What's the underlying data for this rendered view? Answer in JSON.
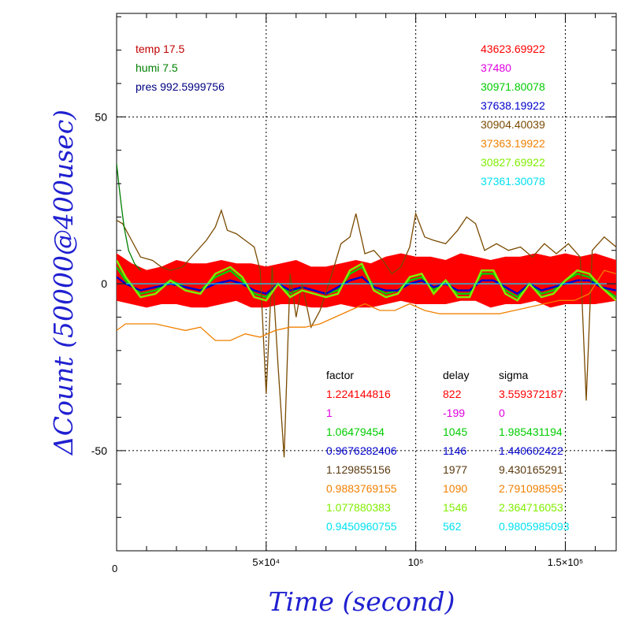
{
  "chart_data": {
    "type": "line",
    "xlabel": "Time (second)",
    "ylabel": "ΔCount (50000@400usec)",
    "xlim": [
      0,
      167000
    ],
    "ylim": [
      -80,
      81
    ],
    "grid": true,
    "x_ticks": [
      {
        "value": 0,
        "label": "0"
      },
      {
        "value": 50000,
        "label": "5×10⁴"
      },
      {
        "value": 100000,
        "label": "10⁵"
      },
      {
        "value": 150000,
        "label": "1.5×10⁵"
      }
    ],
    "y_ticks": [
      {
        "value": 50,
        "label": "50"
      },
      {
        "value": 0,
        "label": "0"
      },
      {
        "value": -50,
        "label": "-50"
      }
    ],
    "conditions": [
      {
        "text": "temp 17.5",
        "color": "#c00000"
      },
      {
        "text": "humi 7.5",
        "color": "#008000"
      },
      {
        "text": "pres 992.5999756",
        "color": "#000080"
      }
    ],
    "means": [
      {
        "text": "43623.69922",
        "color": "#ff0000"
      },
      {
        "text": "37480",
        "color": "#e000e0"
      },
      {
        "text": "30971.80078",
        "color": "#00cc00"
      },
      {
        "text": "37638.19922",
        "color": "#0000cc"
      },
      {
        "text": "30904.40039",
        "color": "#7a4a00"
      },
      {
        "text": "37363.19922",
        "color": "#f08000"
      },
      {
        "text": "30827.69922",
        "color": "#80ee00"
      },
      {
        "text": "37361.30078",
        "color": "#00e0f0"
      }
    ],
    "table": {
      "headers": [
        "factor",
        "delay",
        "sigma"
      ],
      "rows": [
        {
          "factor": "1.224144816",
          "delay": "822",
          "sigma": "3.559372187",
          "color": "#ff0000"
        },
        {
          "factor": "1",
          "delay": "-199",
          "sigma": "0",
          "color": "#e000e0"
        },
        {
          "factor": "1.06479454",
          "delay": "1045",
          "sigma": "1.985431194",
          "color": "#00cc00"
        },
        {
          "factor": "0.9676282406",
          "delay": "1146",
          "sigma": "1.440602422",
          "color": "#0000cc"
        },
        {
          "factor": "1.129855156",
          "delay": "1977",
          "sigma": "9.430165291",
          "color": "#5a3a10"
        },
        {
          "factor": "0.9883769155",
          "delay": "1090",
          "sigma": "2.791098595",
          "color": "#f08000"
        },
        {
          "factor": "1.077880383",
          "delay": "1546",
          "sigma": "2.364716053",
          "color": "#80ee00"
        },
        {
          "factor": "0.9450960755",
          "delay": "562",
          "sigma": "0.9805985093",
          "color": "#00e0f0"
        }
      ]
    },
    "series": [
      {
        "color": "#ff0000",
        "band": true,
        "x": [
          0,
          5000,
          10000,
          15000,
          20000,
          25000,
          30000,
          35000,
          40000,
          45000,
          50000,
          55000,
          60000,
          65000,
          70000,
          75000,
          80000,
          85000,
          90000,
          95000,
          100000,
          105000,
          110000,
          115000,
          120000,
          125000,
          130000,
          135000,
          140000,
          145000,
          150000,
          155000,
          160000,
          167000
        ],
        "upper": [
          9,
          6,
          4,
          5,
          7,
          6,
          6,
          7,
          6,
          6,
          5,
          6,
          7,
          5,
          5,
          6,
          7,
          6,
          8,
          9,
          8,
          8,
          7,
          9,
          8,
          7,
          8,
          8,
          9,
          8,
          9,
          8,
          9,
          7
        ],
        "lower": [
          -5,
          -6,
          -7,
          -6,
          -6,
          -7,
          -7,
          -6,
          -5,
          -7,
          -7,
          -6,
          -6,
          -7,
          -7,
          -6,
          -7,
          -7,
          -6,
          -5,
          -6,
          -6,
          -6,
          -5,
          -5,
          -7,
          -6,
          -6,
          -5,
          -7,
          -6,
          -6,
          -6,
          -5
        ]
      },
      {
        "color": "#e000e0",
        "x": [
          0,
          167000
        ],
        "y": [
          0,
          0
        ]
      },
      {
        "color": "#00cc00",
        "x": [
          0,
          3000,
          8000,
          13000,
          18000,
          23000,
          28000,
          33000,
          38000,
          42000,
          46000,
          50000,
          54000,
          58000,
          62000,
          66000,
          70000,
          74000,
          78000,
          82000,
          86000,
          90000,
          94000,
          98000,
          102000,
          106000,
          110000,
          114000,
          118000,
          122000,
          126000,
          130000,
          134000,
          138000,
          142000,
          146000,
          150000,
          154000,
          158000,
          162000,
          167000
        ],
        "y": [
          5,
          1,
          -3,
          -2,
          1,
          -1,
          -2,
          2,
          4,
          1,
          -3,
          -4,
          0,
          -3,
          -1,
          -2,
          -3,
          -2,
          3,
          5,
          -1,
          -3,
          -2,
          1,
          2,
          -2,
          1,
          -3,
          -3,
          3,
          3,
          -2,
          -4,
          0,
          -3,
          -2,
          1,
          3,
          2,
          -1,
          -4
        ]
      },
      {
        "color": "#0000cc",
        "x": [
          0,
          3000,
          8000,
          13000,
          18000,
          23000,
          28000,
          33000,
          38000,
          42000,
          46000,
          50000,
          54000,
          58000,
          62000,
          66000,
          70000,
          74000,
          78000,
          82000,
          86000,
          90000,
          94000,
          98000,
          102000,
          106000,
          110000,
          114000,
          118000,
          122000,
          126000,
          130000,
          134000,
          138000,
          142000,
          146000,
          150000,
          154000,
          158000,
          162000,
          167000
        ],
        "y": [
          2,
          0,
          -2,
          -1,
          0,
          -1,
          -2,
          0,
          1,
          0,
          -2,
          -3,
          0,
          -2,
          -1,
          -2,
          -3,
          -1,
          1,
          2,
          -1,
          -2,
          -2,
          0,
          1,
          -1,
          0,
          -2,
          -2,
          1,
          1,
          -1,
          -3,
          0,
          -2,
          -1,
          0,
          1,
          1,
          -1,
          -2
        ]
      },
      {
        "color": "#7a4a00",
        "x": [
          0,
          2000,
          5000,
          8000,
          12000,
          15000,
          18000,
          22000,
          26000,
          30000,
          33000,
          35000,
          37000,
          40000,
          43000,
          46000,
          48000,
          50000,
          52000,
          54000,
          56000,
          58000,
          60000,
          62000,
          65000,
          68000,
          72000,
          75000,
          78000,
          80000,
          83000,
          86000,
          89000,
          92000,
          95000,
          98000,
          100000,
          103000,
          106000,
          110000,
          114000,
          117000,
          120000,
          123000,
          127000,
          131000,
          135000,
          139000,
          143000,
          147000,
          151000,
          155000,
          157000,
          159000,
          163000,
          167000
        ],
        "y": [
          19,
          18,
          13,
          8,
          7,
          5,
          4,
          5,
          9,
          13,
          17,
          22,
          16,
          15,
          13,
          11,
          4,
          -33,
          5,
          -25,
          -52,
          3,
          -10,
          0,
          -13,
          -8,
          3,
          12,
          14,
          21,
          9,
          10,
          7,
          3,
          5,
          11,
          21,
          14,
          13,
          12,
          16,
          20,
          18,
          10,
          12,
          10,
          11,
          8,
          12,
          9,
          12,
          8,
          -35,
          10,
          14,
          11
        ]
      },
      {
        "color": "#f08000",
        "x": [
          0,
          3000,
          8000,
          13000,
          18000,
          23000,
          28000,
          33000,
          38000,
          43000,
          48000,
          53000,
          58000,
          63000,
          68000,
          73000,
          78000,
          83000,
          88000,
          93000,
          98000,
          103000,
          108000,
          113000,
          118000,
          123000,
          128000,
          133000,
          138000,
          143000,
          148000,
          153000,
          158000,
          163000,
          167000
        ],
        "y": [
          -14,
          -12,
          -12,
          -12,
          -13,
          -14,
          -13,
          -17,
          -17,
          -15,
          -16,
          -14,
          -13,
          -13,
          -12,
          -10,
          -8,
          -6,
          -8,
          -8,
          -6,
          -8,
          -9,
          -9,
          -9,
          -9,
          -9,
          -8,
          -7,
          -6,
          -5,
          -5,
          -3,
          4,
          3
        ]
      },
      {
        "color": "#80ee00",
        "x": [
          0,
          3000,
          8000,
          13000,
          18000,
          23000,
          28000,
          33000,
          38000,
          42000,
          46000,
          50000,
          54000,
          58000,
          62000,
          66000,
          70000,
          74000,
          78000,
          82000,
          86000,
          90000,
          94000,
          98000,
          102000,
          106000,
          110000,
          114000,
          118000,
          122000,
          126000,
          130000,
          134000,
          138000,
          142000,
          146000,
          150000,
          154000,
          158000,
          162000,
          167000
        ],
        "y": [
          7,
          2,
          -4,
          -3,
          1,
          -2,
          -3,
          3,
          5,
          2,
          -4,
          -5,
          0,
          -4,
          -2,
          -3,
          -4,
          -3,
          4,
          6,
          -2,
          -4,
          -3,
          2,
          3,
          -3,
          1,
          -4,
          -4,
          4,
          4,
          -3,
          -5,
          0,
          -4,
          -3,
          1,
          4,
          3,
          -1,
          -5
        ]
      },
      {
        "color": "#00e0f0",
        "x": [
          0,
          167000
        ],
        "y": [
          0,
          0
        ]
      },
      {
        "color": "#008000",
        "x": [
          0,
          700,
          1500,
          2500,
          4000,
          6000,
          8000
        ],
        "y": [
          36,
          30,
          24,
          17,
          10,
          6,
          4
        ]
      }
    ]
  }
}
